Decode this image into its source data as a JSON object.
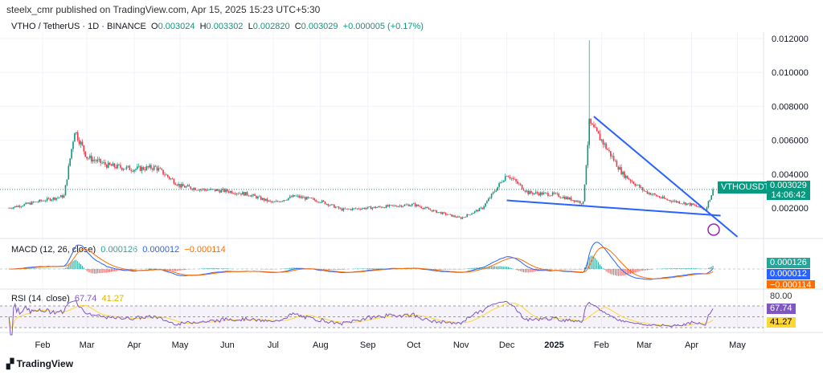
{
  "header": {
    "published": "steelx_cmr published on TradingView.com, Apr 15, 2025 15:23 UTC+5:30"
  },
  "legend": {
    "symbol": "VTHO / TetherUS · 1D · BINANCE",
    "o_label": "O",
    "o": "0.003024",
    "h_label": "H",
    "h": "0.003302",
    "l_label": "L",
    "l": "0.002820",
    "c_label": "C",
    "c": "0.003029",
    "change": "+0.000005 (+0.17%)"
  },
  "macd": {
    "title": "MACD (12, 26, close)",
    "hist": "0.000126",
    "macd": "0.000012",
    "signal": "−0.000114"
  },
  "rsi": {
    "title": "RSI (14, close)",
    "rsi": "67.74",
    "ma": "41.27",
    "upper": "80.00"
  },
  "price_label": {
    "ticker": "VTHOUSDT",
    "price": "0.003029",
    "countdown": "14:06:42"
  },
  "footer": {
    "brand": "TradingView"
  },
  "colors": {
    "up": "#089981",
    "down": "#f23645",
    "trend": "#2962ff",
    "macd": "#2962ff",
    "signal": "#ff6d00",
    "rsi": "#7e57c2",
    "rsi_ma": "#fdd835"
  },
  "chart_data": {
    "type": "candlestick",
    "y_ticks": [
      "0.012000",
      "0.010000",
      "0.008000",
      "0.006000",
      "0.004000",
      "0.002000"
    ],
    "y_tick_values": [
      0.012,
      0.01,
      0.008,
      0.006,
      0.004,
      0.002
    ],
    "x_ticks": [
      {
        "label": "Feb",
        "date": "2024-02-01"
      },
      {
        "label": "Mar",
        "date": "2024-03-01"
      },
      {
        "label": "Apr",
        "date": "2024-04-01"
      },
      {
        "label": "May",
        "date": "2024-05-01"
      },
      {
        "label": "Jun",
        "date": "2024-06-01"
      },
      {
        "label": "Jul",
        "date": "2024-07-01"
      },
      {
        "label": "Aug",
        "date": "2024-08-01"
      },
      {
        "label": "Sep",
        "date": "2024-09-01"
      },
      {
        "label": "Oct",
        "date": "2024-10-01"
      },
      {
        "label": "Nov",
        "date": "2024-11-01"
      },
      {
        "label": "Dec",
        "date": "2024-12-01"
      },
      {
        "label": "2025",
        "date": "2025-01-01"
      },
      {
        "label": "Feb",
        "date": "2025-02-01"
      },
      {
        "label": "Mar",
        "date": "2025-03-01"
      },
      {
        "label": "Apr",
        "date": "2025-04-01"
      },
      {
        "label": "May",
        "date": "2025-05-01"
      }
    ],
    "closes": [
      [
        "2024-01-10",
        0.002
      ],
      [
        "2024-01-25",
        0.0023
      ],
      [
        "2024-02-15",
        0.0027
      ],
      [
        "2024-02-22",
        0.0066
      ],
      [
        "2024-03-01",
        0.005
      ],
      [
        "2024-03-15",
        0.0045
      ],
      [
        "2024-04-01",
        0.0043
      ],
      [
        "2024-04-15",
        0.0044
      ],
      [
        "2024-05-01",
        0.0033
      ],
      [
        "2024-05-15",
        0.0031
      ],
      [
        "2024-06-01",
        0.003
      ],
      [
        "2024-06-15",
        0.0028
      ],
      [
        "2024-07-01",
        0.0023
      ],
      [
        "2024-07-15",
        0.0027
      ],
      [
        "2024-08-01",
        0.0024
      ],
      [
        "2024-08-15",
        0.0019
      ],
      [
        "2024-09-01",
        0.002
      ],
      [
        "2024-09-15",
        0.0021
      ],
      [
        "2024-10-01",
        0.0022
      ],
      [
        "2024-10-15",
        0.0018
      ],
      [
        "2024-11-01",
        0.0014
      ],
      [
        "2024-11-15",
        0.002
      ],
      [
        "2024-12-01",
        0.004
      ],
      [
        "2024-12-15",
        0.0029
      ],
      [
        "2025-01-01",
        0.0028
      ],
      [
        "2025-01-20",
        0.0023
      ],
      [
        "2025-01-24",
        0.007
      ],
      [
        "2025-02-01",
        0.006
      ],
      [
        "2025-02-15",
        0.004
      ],
      [
        "2025-03-01",
        0.003
      ],
      [
        "2025-03-15",
        0.0025
      ],
      [
        "2025-04-01",
        0.0022
      ],
      [
        "2025-04-10",
        0.0019
      ],
      [
        "2025-04-15",
        0.003029
      ]
    ],
    "spike_high": {
      "date": "2025-01-24",
      "value": 0.0119
    },
    "trendlines": [
      {
        "from": [
          "2024-12-01",
          0.00245
        ],
        "to": [
          "2025-04-20",
          0.00155
        ]
      },
      {
        "from": [
          "2025-01-27",
          0.0074
        ],
        "to": [
          "2025-05-01",
          0.0003
        ]
      }
    ],
    "rsi_levels": [
      80,
      50,
      20
    ]
  }
}
